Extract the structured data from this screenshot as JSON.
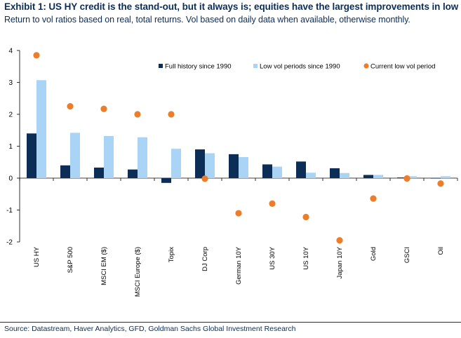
{
  "title": "Exhibit 1: US HY credit is the stand-out, but it always is; equities have the largest improvements in low vol",
  "subtitle": "Return to vol ratios based on real, total returns. Vol based on daily data when available, otherwise monthly.",
  "source": "Source: Datastream, Haver Analytics, GFD, Goldman Sachs Global Investment Research",
  "colors": {
    "full": "#0c2d55",
    "low": "#a9d4f5",
    "current": "#ee7d2a",
    "title": "#0b2e59"
  },
  "chart_data": {
    "type": "bar",
    "categories": [
      "US HY",
      "S&P 500",
      "MSCI EM ($)",
      "MSCI Europe ($)",
      "Topix",
      "DJ Corp",
      "German 10Y",
      "US 30Y",
      "US 10Y",
      "Japan 10Y",
      "Gold",
      "GSCI",
      "Oil"
    ],
    "series": [
      {
        "name": "Full history since 1990",
        "kind": "bar",
        "values": [
          1.4,
          0.4,
          0.33,
          0.27,
          -0.15,
          0.9,
          0.75,
          0.43,
          0.52,
          0.31,
          0.1,
          0.02,
          0.0
        ]
      },
      {
        "name": "Low vol periods since 1990",
        "kind": "bar",
        "values": [
          3.07,
          1.42,
          1.32,
          1.28,
          0.92,
          0.78,
          0.66,
          0.36,
          0.17,
          0.16,
          0.1,
          0.06,
          0.06
        ]
      },
      {
        "name": "Current low vol period",
        "kind": "dot",
        "values": [
          3.85,
          2.25,
          2.17,
          2.0,
          2.0,
          -0.02,
          -1.1,
          -0.8,
          -1.22,
          -1.95,
          -0.64,
          -0.01,
          -0.17
        ]
      }
    ],
    "ylim": [
      -2,
      4
    ],
    "yticks": [
      "-2",
      "-1",
      "0",
      "1",
      "2",
      "3",
      "4"
    ],
    "legend_position": "top-right",
    "grid": false
  }
}
